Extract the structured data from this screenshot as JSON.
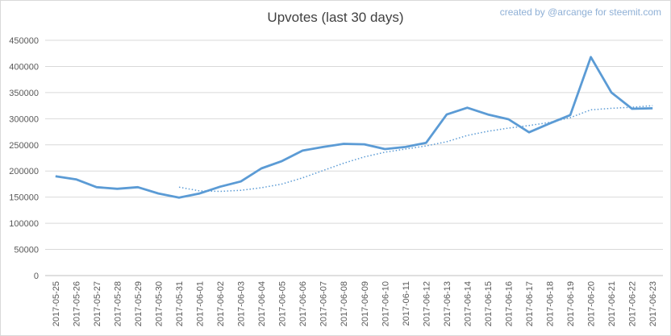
{
  "credit": "created by @arcange for steemit.com",
  "chart_data": {
    "type": "line",
    "title": "Upvotes (last 30 days)",
    "xlabel": "",
    "ylabel": "",
    "ylim": [
      0,
      450000
    ],
    "yticks": [
      0,
      50000,
      100000,
      150000,
      200000,
      250000,
      300000,
      350000,
      400000,
      450000
    ],
    "grid": true,
    "legend": "none",
    "categories": [
      "2017-05-25",
      "2017-05-26",
      "2017-05-27",
      "2017-05-28",
      "2017-05-29",
      "2017-05-30",
      "2017-05-31",
      "2017-06-01",
      "2017-06-02",
      "2017-06-03",
      "2017-06-04",
      "2017-06-05",
      "2017-06-06",
      "2017-06-07",
      "2017-06-08",
      "2017-06-09",
      "2017-06-10",
      "2017-06-11",
      "2017-06-12",
      "2017-06-13",
      "2017-06-14",
      "2017-06-15",
      "2017-06-16",
      "2017-06-17",
      "2017-06-18",
      "2017-06-19",
      "2017-06-20",
      "2017-06-21",
      "2017-06-22",
      "2017-06-23"
    ],
    "series": [
      {
        "style": "solid",
        "color": "#5b9bd5",
        "values": [
          190000,
          184000,
          169000,
          166000,
          169000,
          157000,
          149000,
          157000,
          170000,
          180000,
          205000,
          219000,
          239000,
          246000,
          252000,
          251000,
          242000,
          246000,
          254000,
          308000,
          321000,
          308000,
          299000,
          274000,
          291000,
          307000,
          418000,
          350000,
          319000,
          320000
        ]
      },
      {
        "style": "dotted",
        "color": "#5b9bd5",
        "values": [
          null,
          null,
          null,
          null,
          null,
          null,
          169000,
          162000,
          161000,
          163000,
          168000,
          175000,
          187000,
          201000,
          215000,
          227000,
          236000,
          242000,
          248000,
          256000,
          268000,
          276000,
          282000,
          287000,
          293000,
          302000,
          317000,
          320000,
          322000,
          325000
        ]
      }
    ]
  }
}
